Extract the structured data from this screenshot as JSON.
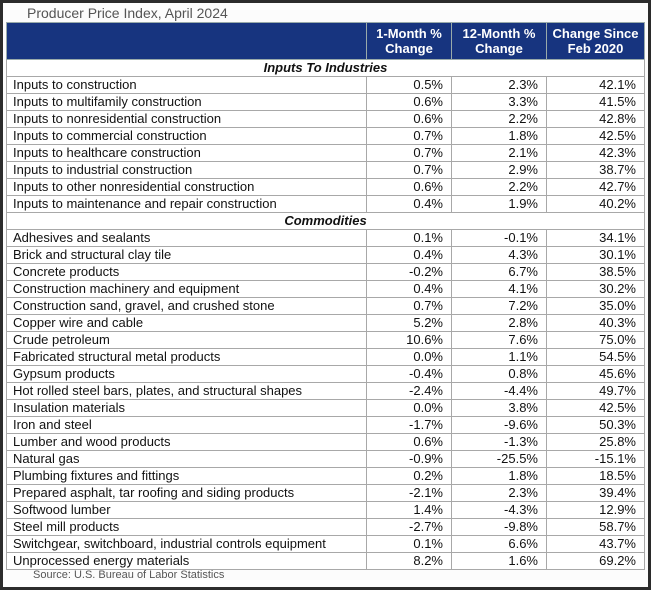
{
  "title": "Producer Price Index, April 2024",
  "header": {
    "columns": [
      "1-Month % Change",
      "12-Month % Change",
      "Change Since Feb 2020"
    ]
  },
  "sections": [
    {
      "title": "Inputs To Industries",
      "rows": [
        [
          "Inputs to construction",
          "0.5%",
          "2.3%",
          "42.1%"
        ],
        [
          "Inputs to multifamily construction",
          "0.6%",
          "3.3%",
          "41.5%"
        ],
        [
          "Inputs to nonresidential construction",
          "0.6%",
          "2.2%",
          "42.8%"
        ],
        [
          "Inputs to commercial construction",
          "0.7%",
          "1.8%",
          "42.5%"
        ],
        [
          "Inputs to healthcare construction",
          "0.7%",
          "2.1%",
          "42.3%"
        ],
        [
          "Inputs to industrial construction",
          "0.7%",
          "2.9%",
          "38.7%"
        ],
        [
          "Inputs to other nonresidential construction",
          "0.6%",
          "2.2%",
          "42.7%"
        ],
        [
          "Inputs to maintenance and repair construction",
          "0.4%",
          "1.9%",
          "40.2%"
        ]
      ]
    },
    {
      "title": "Commodities",
      "rows": [
        [
          "Adhesives and sealants",
          "0.1%",
          "-0.1%",
          "34.1%"
        ],
        [
          "Brick and structural clay tile",
          "0.4%",
          "4.3%",
          "30.1%"
        ],
        [
          "Concrete products",
          "-0.2%",
          "6.7%",
          "38.5%"
        ],
        [
          "Construction machinery and equipment",
          "0.4%",
          "4.1%",
          "30.2%"
        ],
        [
          "Construction sand, gravel, and crushed stone",
          "0.7%",
          "7.2%",
          "35.0%"
        ],
        [
          "Copper wire and cable",
          "5.2%",
          "2.8%",
          "40.3%"
        ],
        [
          "Crude petroleum",
          "10.6%",
          "7.6%",
          "75.0%"
        ],
        [
          "Fabricated structural metal products",
          "0.0%",
          "1.1%",
          "54.5%"
        ],
        [
          "Gypsum products",
          "-0.4%",
          "0.8%",
          "45.6%"
        ],
        [
          "Hot rolled steel bars, plates, and structural shapes",
          "-2.4%",
          "-4.4%",
          "49.7%"
        ],
        [
          "Insulation materials",
          "0.0%",
          "3.8%",
          "42.5%"
        ],
        [
          "Iron and steel",
          "-1.7%",
          "-9.6%",
          "50.3%"
        ],
        [
          "Lumber and wood products",
          "0.6%",
          "-1.3%",
          "25.8%"
        ],
        [
          "Natural gas",
          "-0.9%",
          "-25.5%",
          "-15.1%"
        ],
        [
          "Plumbing fixtures and fittings",
          "0.2%",
          "1.8%",
          "18.5%"
        ],
        [
          "Prepared asphalt, tar roofing and siding products",
          "-2.1%",
          "2.3%",
          "39.4%"
        ],
        [
          "Softwood lumber",
          "1.4%",
          "-4.3%",
          "12.9%"
        ],
        [
          "Steel mill products",
          "-2.7%",
          "-9.8%",
          "58.7%"
        ],
        [
          "Switchgear, switchboard, industrial controls equipment",
          "0.1%",
          "6.6%",
          "43.7%"
        ],
        [
          "Unprocessed energy materials",
          "8.2%",
          "1.6%",
          "69.2%"
        ]
      ]
    }
  ],
  "source": "Source: U.S. Bureau of Labor Statistics"
}
